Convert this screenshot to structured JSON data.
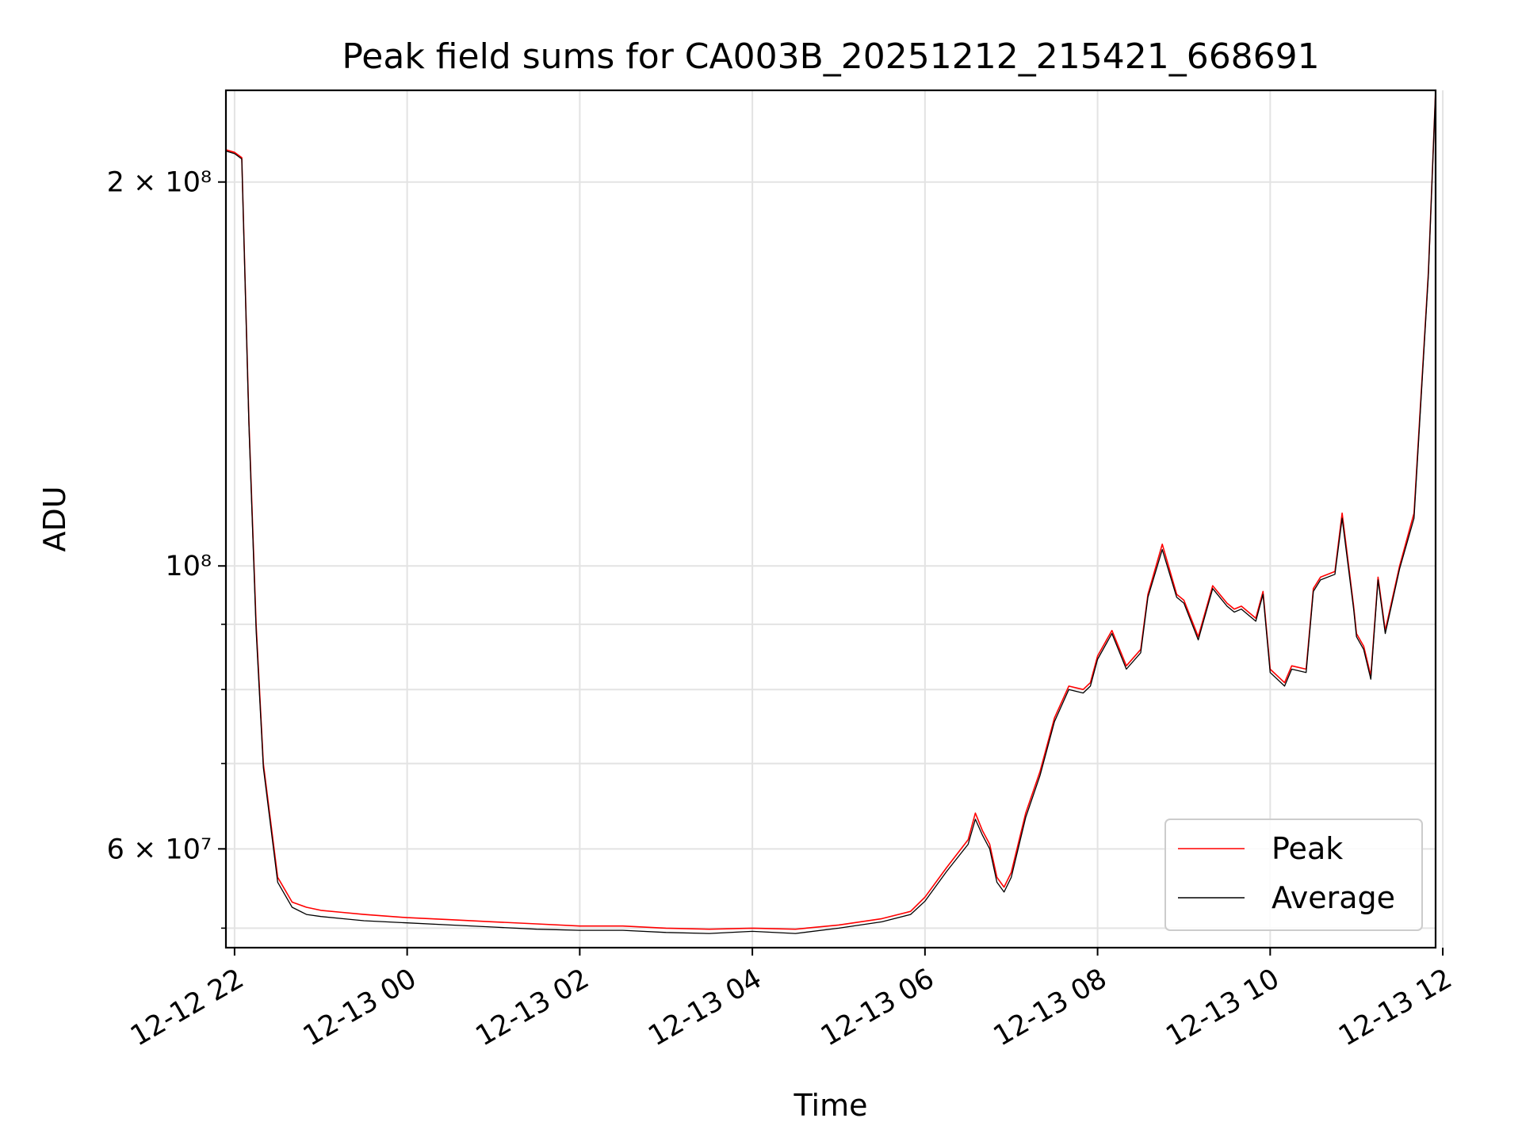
{
  "chart_data": {
    "type": "line",
    "title": "Peak field sums for CA003B_20251212_215421_668691",
    "xlabel": "Time",
    "ylabel": "ADU",
    "yscale": "log",
    "ylim": [
      50200000,
      236000000
    ],
    "xlim": [
      "2025-12-12 21:54",
      "2025-12-13 11:55"
    ],
    "grid": true,
    "legend_position": "lower right",
    "x_ticks": [
      "12-12 22",
      "12-13 00",
      "12-13 02",
      "12-13 04",
      "12-13 06",
      "12-13 08",
      "12-13 10",
      "12-13 12"
    ],
    "y_ticks": [
      {
        "label": "2 × 10⁸",
        "value": 200000000
      },
      {
        "label": "10⁸",
        "value": 100000000
      },
      {
        "label": "6 × 10⁷",
        "value": 60000000
      }
    ],
    "y_minor_ticks": [
      52000000,
      70000000,
      80000000,
      90000000
    ],
    "x": [
      "2025-12-12 21:54",
      "2025-12-12 22:00",
      "2025-12-12 22:05",
      "2025-12-12 22:10",
      "2025-12-12 22:15",
      "2025-12-12 22:20",
      "2025-12-12 22:30",
      "2025-12-12 22:40",
      "2025-12-12 22:50",
      "2025-12-12 23:00",
      "2025-12-12 23:15",
      "2025-12-12 23:30",
      "2025-12-13 00:00",
      "2025-12-13 00:30",
      "2025-12-13 01:00",
      "2025-12-13 01:30",
      "2025-12-13 02:00",
      "2025-12-13 02:30",
      "2025-12-13 03:00",
      "2025-12-13 03:30",
      "2025-12-13 04:00",
      "2025-12-13 04:30",
      "2025-12-13 05:00",
      "2025-12-13 05:30",
      "2025-12-13 05:50",
      "2025-12-13 06:00",
      "2025-12-13 06:15",
      "2025-12-13 06:30",
      "2025-12-13 06:35",
      "2025-12-13 06:40",
      "2025-12-13 06:45",
      "2025-12-13 06:50",
      "2025-12-13 06:55",
      "2025-12-13 07:00",
      "2025-12-13 07:10",
      "2025-12-13 07:20",
      "2025-12-13 07:30",
      "2025-12-13 07:40",
      "2025-12-13 07:50",
      "2025-12-13 07:55",
      "2025-12-13 08:00",
      "2025-12-13 08:10",
      "2025-12-13 08:20",
      "2025-12-13 08:30",
      "2025-12-13 08:35",
      "2025-12-13 08:45",
      "2025-12-13 08:55",
      "2025-12-13 09:00",
      "2025-12-13 09:10",
      "2025-12-13 09:20",
      "2025-12-13 09:30",
      "2025-12-13 09:35",
      "2025-12-13 09:40",
      "2025-12-13 09:50",
      "2025-12-13 09:55",
      "2025-12-13 10:00",
      "2025-12-13 10:10",
      "2025-12-13 10:15",
      "2025-12-13 10:25",
      "2025-12-13 10:30",
      "2025-12-13 10:35",
      "2025-12-13 10:45",
      "2025-12-13 10:50",
      "2025-12-13 10:58",
      "2025-12-13 11:00",
      "2025-12-13 11:05",
      "2025-12-13 11:10",
      "2025-12-13 11:15",
      "2025-12-13 11:20",
      "2025-12-13 11:30",
      "2025-12-13 11:40",
      "2025-12-13 11:50",
      "2025-12-13 11:55"
    ],
    "series": [
      {
        "name": "Peak",
        "color": "#ff0000",
        "values": [
          212000000,
          211000000,
          209000000,
          130000000,
          90000000,
          70000000,
          57000000,
          54500000,
          54000000,
          53700000,
          53500000,
          53300000,
          53000000,
          52800000,
          52600000,
          52400000,
          52200000,
          52200000,
          52000000,
          51900000,
          52000000,
          51900000,
          52300000,
          52900000,
          53600000,
          55000000,
          58000000,
          61000000,
          64000000,
          62000000,
          60500000,
          57000000,
          56000000,
          57500000,
          64000000,
          69000000,
          76000000,
          80500000,
          80000000,
          81000000,
          85000000,
          89000000,
          83500000,
          86000000,
          95000000,
          104000000,
          95000000,
          94000000,
          88000000,
          96500000,
          93500000,
          92500000,
          93000000,
          91000000,
          95500000,
          83000000,
          81000000,
          83500000,
          83000000,
          96000000,
          98000000,
          99000000,
          110000000,
          93000000,
          88500000,
          86500000,
          82000000,
          98000000,
          89000000,
          100000000,
          110000000,
          170000000,
          236000000
        ]
      },
      {
        "name": "Average",
        "color": "#000000",
        "values": [
          211500000,
          210500000,
          208500000,
          129000000,
          89000000,
          69500000,
          56500000,
          54000000,
          53300000,
          53100000,
          52900000,
          52700000,
          52500000,
          52300000,
          52100000,
          51900000,
          51800000,
          51800000,
          51600000,
          51500000,
          51700000,
          51500000,
          52000000,
          52600000,
          53300000,
          54600000,
          57600000,
          60500000,
          63300000,
          61500000,
          60000000,
          56500000,
          55500000,
          57000000,
          63500000,
          68500000,
          75500000,
          80000000,
          79500000,
          80500000,
          84500000,
          88500000,
          83000000,
          85500000,
          94500000,
          103000000,
          94500000,
          93500000,
          87500000,
          96000000,
          93000000,
          92000000,
          92500000,
          90500000,
          95000000,
          82500000,
          80500000,
          83000000,
          82500000,
          95500000,
          97500000,
          98500000,
          109000000,
          92500000,
          88000000,
          86000000,
          81500000,
          97500000,
          88500000,
          99500000,
          109000000,
          169000000,
          236000000
        ]
      }
    ],
    "legend": [
      "Peak",
      "Average"
    ]
  }
}
